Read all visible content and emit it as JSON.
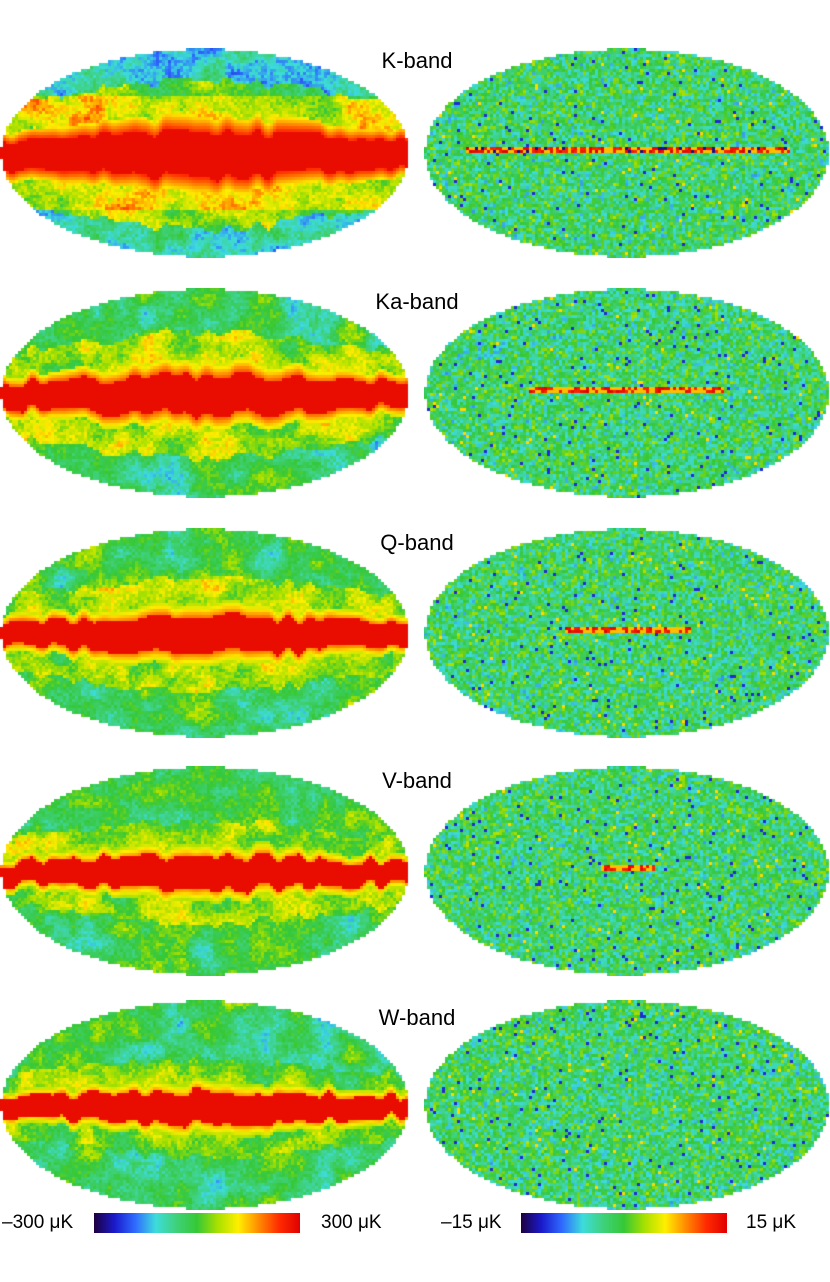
{
  "panels": [
    {
      "title": "K-band",
      "left_level": 1.0,
      "right_level": 1.0
    },
    {
      "title": "Ka-band",
      "left_level": 0.75,
      "right_level": 0.55
    },
    {
      "title": "Q-band",
      "left_level": 0.62,
      "right_level": 0.3
    },
    {
      "title": "V-band",
      "left_level": 0.5,
      "right_level": 0.05
    },
    {
      "title": "W-band",
      "left_level": 0.45,
      "right_level": 0.0
    }
  ],
  "colorbars": {
    "left": {
      "min_label": "–300 μK",
      "max_label": "300 μK"
    },
    "right": {
      "min_label": "–15 μK",
      "max_label": "15 μK"
    }
  },
  "colors": {
    "colormap": [
      "#1e0040",
      "#1a1acc",
      "#2f6bff",
      "#3ddcdc",
      "#3fd17a",
      "#36c836",
      "#a8e000",
      "#ffef00",
      "#ff8a00",
      "#ff2a00",
      "#e00000"
    ],
    "band_red": "#f00000",
    "background": "#ffffff"
  }
}
